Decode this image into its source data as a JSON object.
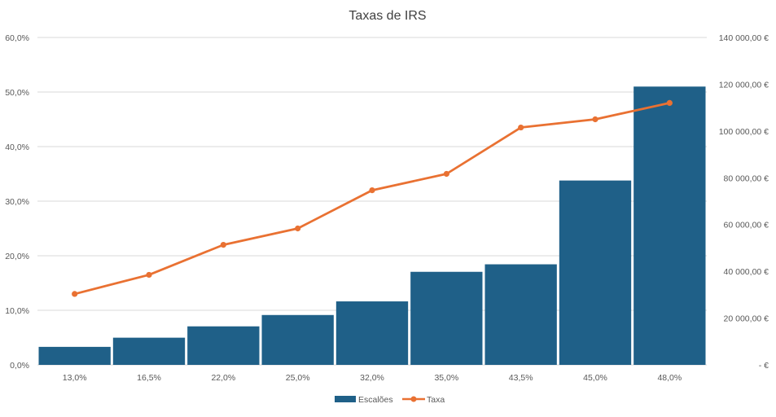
{
  "chart_data": {
    "type": "bar",
    "title": "Taxas de IRS",
    "categories": [
      "13,0%",
      "16,5%",
      "22,0%",
      "25,0%",
      "32,0%",
      "35,0%",
      "43,5%",
      "45,0%",
      "48,0%"
    ],
    "series": [
      {
        "name": "Escalões",
        "type": "bar",
        "axis": "right",
        "color": "#1f6088",
        "values": [
          7703,
          11623,
          16472,
          21321,
          27146,
          39791,
          43000,
          78834,
          119000
        ]
      },
      {
        "name": "Taxa",
        "type": "line",
        "axis": "left",
        "color": "#e97132",
        "values": [
          0.13,
          0.165,
          0.22,
          0.25,
          0.32,
          0.35,
          0.435,
          0.45,
          0.48
        ]
      }
    ],
    "y_left": {
      "range": [
        0,
        0.6
      ],
      "ticks": [
        0,
        0.1,
        0.2,
        0.3,
        0.4,
        0.5,
        0.6
      ],
      "tick_labels": [
        "0,0%",
        "10,0%",
        "20,0%",
        "30,0%",
        "40,0%",
        "50,0%",
        "60,0%"
      ]
    },
    "y_right": {
      "range": [
        0,
        140000
      ],
      "ticks": [
        0,
        20000,
        40000,
        60000,
        80000,
        100000,
        120000,
        140000
      ],
      "tick_labels": [
        "-  €",
        "20 000,00 €",
        "40 000,00 €",
        "60 000,00 €",
        "80 000,00 €",
        "100 000,00 €",
        "120 000,00 €",
        "140 000,00 €"
      ]
    },
    "grid": true,
    "legend": "bottom",
    "line_color": "#e97132",
    "bar_color": "#1f6088",
    "grid_color": "#d9d9d9"
  }
}
